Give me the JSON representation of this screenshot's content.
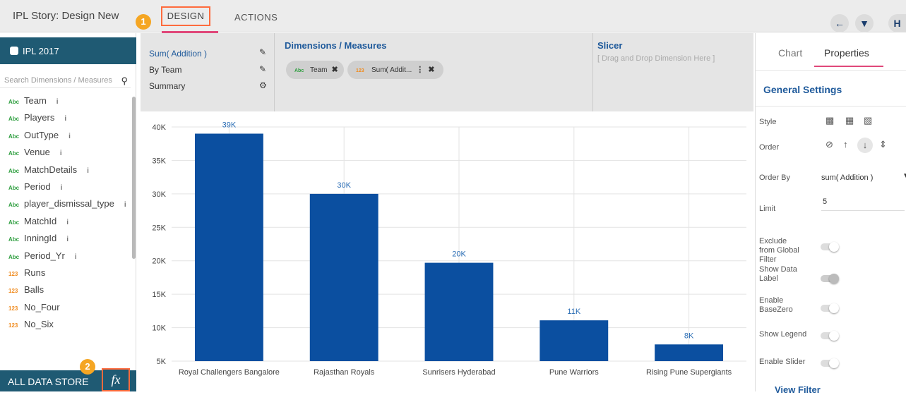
{
  "topbar": {
    "story_title": "IPL Story: Design New",
    "badge1": "1",
    "tabs": {
      "design": "DESIGN",
      "actions": "ACTIONS"
    },
    "icons": [
      "arrow-left-icon",
      "filter-icon",
      "save-icon"
    ]
  },
  "sidebar": {
    "datastore": "IPL 2017",
    "search_placeholder": "Search Dimensions / Measures",
    "fields": [
      {
        "type": "Abc",
        "name": "Team",
        "info": "i"
      },
      {
        "type": "Abc",
        "name": "Players",
        "info": "i"
      },
      {
        "type": "Abc",
        "name": "OutType",
        "info": "i"
      },
      {
        "type": "Abc",
        "name": "Venue",
        "info": "i"
      },
      {
        "type": "Abc",
        "name": "MatchDetails",
        "info": "i"
      },
      {
        "type": "Abc",
        "name": "Period",
        "info": "i"
      },
      {
        "type": "Abc",
        "name": "player_dismissal_type",
        "info": "i"
      },
      {
        "type": "Abc",
        "name": "MatchId",
        "info": "i"
      },
      {
        "type": "Abc",
        "name": "InningId",
        "info": "i"
      },
      {
        "type": "Abc",
        "name": "Period_Yr",
        "info": "i"
      },
      {
        "type": "123",
        "name": "Runs",
        "info": ""
      },
      {
        "type": "123",
        "name": "Balls",
        "info": ""
      },
      {
        "type": "123",
        "name": "No_Four",
        "info": ""
      },
      {
        "type": "123",
        "name": "No_Six",
        "info": ""
      }
    ],
    "footer_label": "ALL DATA STORE",
    "badge2": "2",
    "fx_label": "fx"
  },
  "config": {
    "measure": "Sum( Addition )",
    "by": "By Team",
    "summary": "Summary",
    "dm_title": "Dimensions / Measures",
    "chips": [
      {
        "type": "Abc",
        "label": "Team"
      },
      {
        "type": "123",
        "label": "Sum( Addit..."
      }
    ],
    "slicer_title": "Slicer",
    "slicer_hint": "[ Drag and Drop Dimension Here ]"
  },
  "chart_data": {
    "type": "bar",
    "categories": [
      "Royal Challengers Bangalore",
      "Rajasthan Royals",
      "Sunrisers Hyderabad",
      "Pune Warriors",
      "Rising Pune Supergiants"
    ],
    "values": [
      39000,
      30000,
      19700,
      11100,
      7500
    ],
    "data_labels": [
      "39K",
      "30K",
      "20K",
      "11K",
      "8K"
    ],
    "ylim": [
      5000,
      40000
    ],
    "yticks": [
      "5K",
      "10K",
      "15K",
      "20K",
      "25K",
      "30K",
      "35K",
      "40K"
    ],
    "bar_color": "#0b4fa0",
    "label_color": "#2a6db5",
    "grid": true
  },
  "properties": {
    "tabs": {
      "chart": "Chart",
      "properties": "Properties"
    },
    "section_title": "General Settings",
    "style_label": "Style",
    "order_label": "Order",
    "order_by_label": "Order By",
    "order_by_value": "sum( Addition )",
    "limit_label": "Limit",
    "limit_value": "5",
    "exclude_label": "Exclude from Global Filter",
    "show_data_label": "Show Data Label",
    "enable_basezero": "Enable BaseZero",
    "show_legend": "Show Legend",
    "enable_slider": "Enable Slider",
    "view_filter": "View Filter"
  }
}
